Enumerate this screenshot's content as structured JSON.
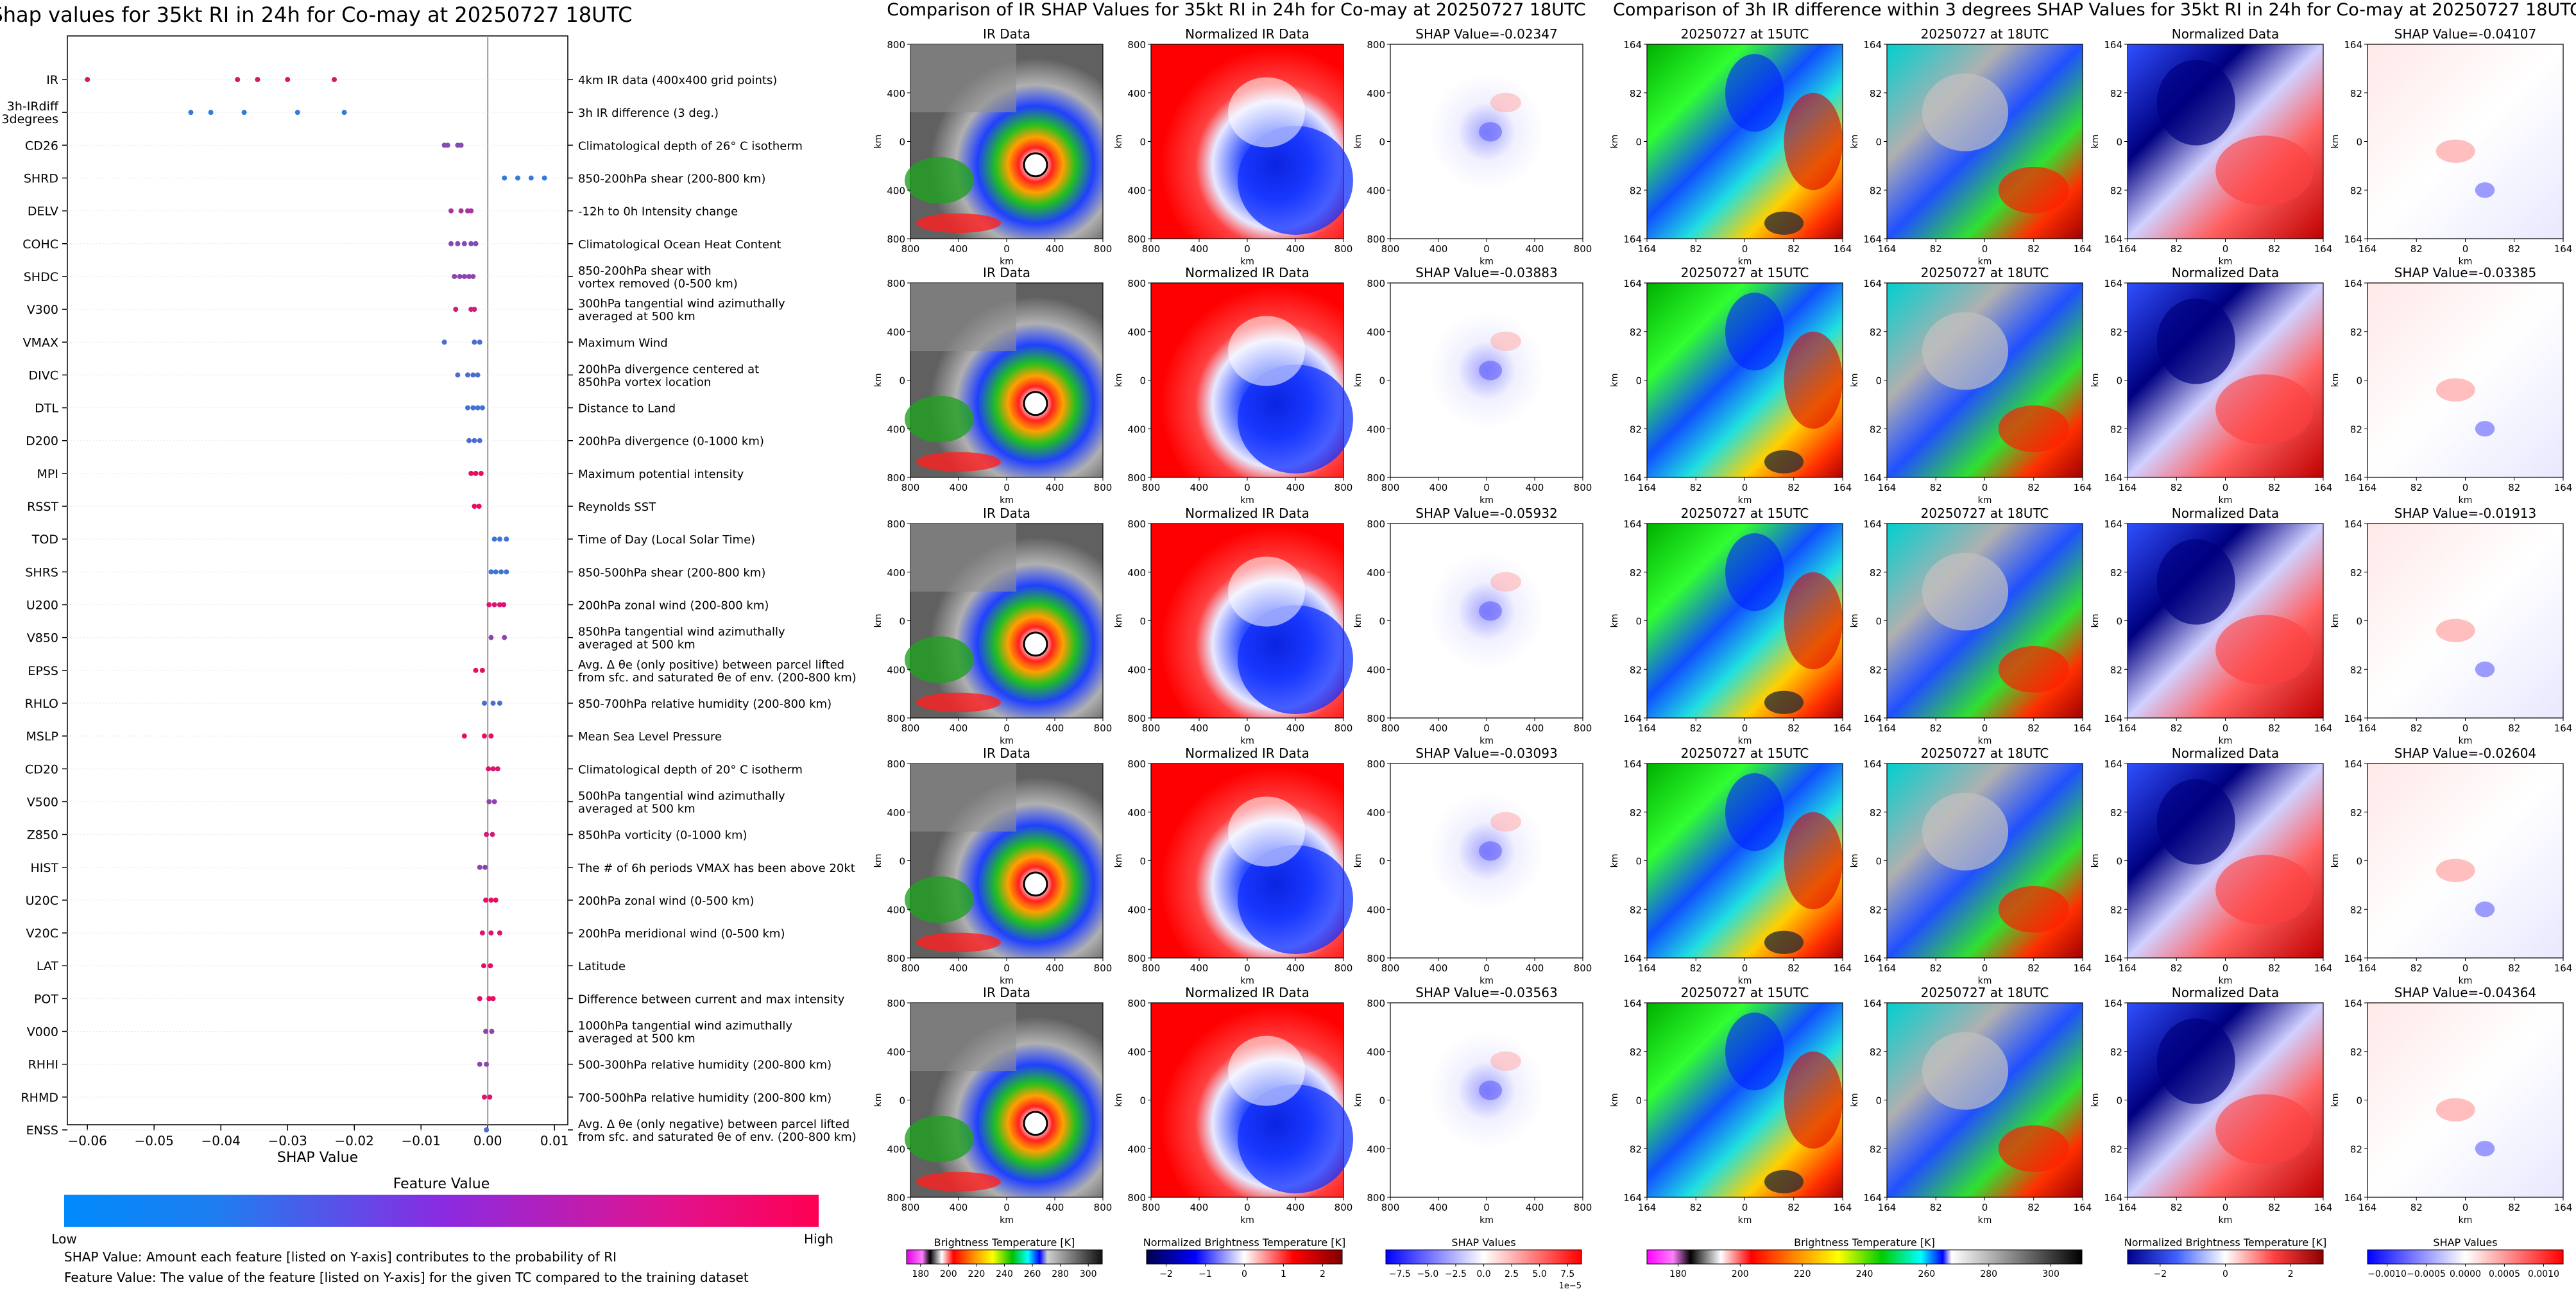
{
  "colors": {
    "feature_low": "#1e88e5",
    "feature_mid": "#8e44ad",
    "feature_high": "#ff0052",
    "shap_neg": "#0000ff",
    "shap_pos": "#c00000"
  },
  "left_panel": {
    "title": "Shap values for 35kt RI in 24h for Co-may at 20250727 18UTC",
    "xlabel": "SHAP Value",
    "legend_title": "Feature Value",
    "legend_low": "Low",
    "legend_high": "High",
    "note1": "SHAP Value: Amount each feature [listed on Y-axis] contributes to the probability of RI",
    "note2": "Feature Value: The value of the feature [listed on Y-axis] for the given TC compared to the training dataset"
  },
  "chart_data": [
    {
      "type": "scatter",
      "title": "Shap values for 35kt RI in 24h for Co-may at 20250727 18UTC",
      "xlabel": "SHAP Value",
      "xlim": [
        -0.063,
        0.012
      ],
      "xticks": [
        "-0.06",
        "-0.05",
        "-0.04",
        "-0.03",
        "-0.02",
        "-0.01",
        "0.00",
        "0.01"
      ],
      "xtick_values": [
        -0.06,
        -0.05,
        -0.04,
        -0.03,
        -0.02,
        -0.01,
        0.0,
        0.01
      ],
      "features": [
        {
          "name": "IR",
          "desc": "4km IR data (400x400 grid points)",
          "values": [
            -0.06,
            -0.0375,
            -0.0345,
            -0.03,
            -0.023
          ],
          "level": 0.85
        },
        {
          "name": "3h-IRdiff\n3degrees",
          "desc": "3h IR difference (3 deg.)",
          "values": [
            -0.0445,
            -0.0415,
            -0.0365,
            -0.0285,
            -0.0215
          ],
          "level": 0.1
        },
        {
          "name": "CD26",
          "desc": "Climatological depth of 26° C isotherm",
          "values": [
            -0.0065,
            -0.006,
            -0.0045,
            -0.004
          ],
          "level": 0.45
        },
        {
          "name": "SHRD",
          "desc": "850-200hPa shear (200-800 km)",
          "values": [
            0.0025,
            0.0045,
            0.0065,
            0.0085
          ],
          "level": 0.1
        },
        {
          "name": "DELV",
          "desc": "-12h to 0h Intensity change",
          "values": [
            -0.0055,
            -0.004,
            -0.003,
            -0.0025
          ],
          "level": 0.6
        },
        {
          "name": "COHC",
          "desc": "Climatological Ocean Heat Content",
          "values": [
            -0.0055,
            -0.0045,
            -0.0035,
            -0.0025,
            -0.0018
          ],
          "level": 0.45
        },
        {
          "name": "SHDC",
          "desc": "850-200hPa shear with\nvortex removed (0-500 km)",
          "values": [
            -0.005,
            -0.0042,
            -0.0035,
            -0.0028,
            -0.0022
          ],
          "level": 0.5
        },
        {
          "name": "V300",
          "desc": "300hPa tangential wind azimuthally\naveraged at 500 km",
          "values": [
            -0.0048,
            -0.0025,
            -0.002
          ],
          "level": 0.8
        },
        {
          "name": "VMAX",
          "desc": "Maximum Wind",
          "values": [
            -0.0065,
            -0.002,
            -0.0012
          ],
          "level": 0.2
        },
        {
          "name": "DIVC",
          "desc": "200hPa divergence centered at\n850hPa vortex location",
          "values": [
            -0.0045,
            -0.003,
            -0.0022,
            -0.0015
          ],
          "level": 0.2
        },
        {
          "name": "DTL",
          "desc": "Distance to Land",
          "values": [
            -0.003,
            -0.0022,
            -0.0015,
            -0.0008
          ],
          "level": 0.15
        },
        {
          "name": "D200",
          "desc": "200hPa divergence (0-1000 km)",
          "values": [
            -0.0028,
            -0.002,
            -0.0012
          ],
          "level": 0.2
        },
        {
          "name": "MPI",
          "desc": "Maximum potential intensity",
          "values": [
            -0.0025,
            -0.0018,
            -0.001
          ],
          "level": 0.9
        },
        {
          "name": "RSST",
          "desc": "Reynolds SST",
          "values": [
            -0.002,
            -0.0013
          ],
          "level": 0.9
        },
        {
          "name": "TOD",
          "desc": "Time of Day (Local Solar Time)",
          "values": [
            0.001,
            0.0018,
            0.0028
          ],
          "level": 0.15
        },
        {
          "name": "SHRS",
          "desc": "850-500hPa shear (200-800 km)",
          "values": [
            0.0005,
            0.0012,
            0.002,
            0.0028
          ],
          "level": 0.15
        },
        {
          "name": "U200",
          "desc": "200hPa zonal wind (200-800 km)",
          "values": [
            0.0002,
            0.001,
            0.0018,
            0.0024
          ],
          "level": 0.85
        },
        {
          "name": "V850",
          "desc": "850hPa tangential wind azimuthally\naveraged at 500 km",
          "values": [
            0.0005,
            0.0025
          ],
          "level": 0.5
        },
        {
          "name": "EPSS",
          "desc": "Avg. Δ θe (only positive) between parcel lifted\nfrom sfc. and saturated θe of env. (200-800 km)",
          "values": [
            -0.0018,
            -0.0008
          ],
          "level": 0.9
        },
        {
          "name": "RHLO",
          "desc": "850-700hPa relative humidity (200-800 km)",
          "values": [
            -0.0005,
            0.0008,
            0.0018
          ],
          "level": 0.2
        },
        {
          "name": "MSLP",
          "desc": "Mean Sea Level Pressure",
          "values": [
            -0.0035,
            -0.0005,
            0.0005
          ],
          "level": 0.9
        },
        {
          "name": "CD20",
          "desc": "Climatological depth of 20° C isotherm",
          "values": [
            0.0001,
            0.0008,
            0.0015
          ],
          "level": 0.85
        },
        {
          "name": "V500",
          "desc": "500hPa tangential wind azimuthally\naveraged at 500 km",
          "values": [
            0.0002,
            0.001
          ],
          "level": 0.5
        },
        {
          "name": "Z850",
          "desc": "850hPa vorticity (0-1000 km)",
          "values": [
            -0.0002,
            0.0007
          ],
          "level": 0.8
        },
        {
          "name": "HIST",
          "desc": "The # of 6h periods VMAX has been above 20kt",
          "values": [
            -0.0012,
            -0.0004
          ],
          "level": 0.5
        },
        {
          "name": "U20C",
          "desc": "200hPa zonal wind (0-500 km)",
          "values": [
            -0.0003,
            0.0005,
            0.0012
          ],
          "level": 0.9
        },
        {
          "name": "V20C",
          "desc": "200hPa meridional wind (0-500 km)",
          "values": [
            -0.0008,
            0.0005,
            0.0018
          ],
          "level": 0.85
        },
        {
          "name": "LAT",
          "desc": "Latitude",
          "values": [
            -0.0006,
            0.0004
          ],
          "level": 0.9
        },
        {
          "name": "POT",
          "desc": "Difference between current and max intensity",
          "values": [
            -0.0012,
            0.0002,
            0.0008
          ],
          "level": 0.9
        },
        {
          "name": "V000",
          "desc": "1000hPa tangential wind azimuthally\naveraged at 500 km",
          "values": [
            -0.0003,
            0.0006
          ],
          "level": 0.5
        },
        {
          "name": "RHHI",
          "desc": "500-300hPa relative humidity (200-800 km)",
          "values": [
            -0.0012,
            -0.0002
          ],
          "level": 0.5
        },
        {
          "name": "RHMD",
          "desc": "700-500hPa relative humidity (200-800 km)",
          "values": [
            -0.0005,
            0.0003
          ],
          "level": 0.85
        },
        {
          "name": "ENSS",
          "desc": "Avg. Δ θe (only negative) between parcel lifted\nfrom sfc. and saturated θe of env. (200-800 km)",
          "values": [
            -0.0002
          ],
          "level": 0.2
        }
      ]
    }
  ],
  "middle": {
    "title": "Comparison of IR SHAP Values for 35kt RI in 24h for Co-may at 20250727 18UTC",
    "col_titles": [
      "IR Data",
      "Normalized IR Data"
    ],
    "shap_titles": [
      "SHAP Value=-0.02347",
      "SHAP Value=-0.03883",
      "SHAP Value=-0.05932",
      "SHAP Value=-0.03093",
      "SHAP Value=-0.03563"
    ],
    "yticks": [
      "800",
      "400",
      "0",
      "400",
      "800"
    ],
    "xticks": [
      "800",
      "400",
      "0",
      "400",
      "800"
    ],
    "axis_unit": "km",
    "cb1_label": "Brightness Temperature [K]",
    "cb1_ticks": [
      "180",
      "200",
      "220",
      "240",
      "260",
      "280",
      "300"
    ],
    "cb2_label": "Normalized Brightness Temperature [K]",
    "cb2_ticks": [
      "−2",
      "−1",
      "0",
      "1",
      "2"
    ],
    "cb3_label": "SHAP Values",
    "cb3_ticks": [
      "−7.5",
      "−5.0",
      "−2.5",
      "0.0",
      "2.5",
      "5.0",
      "7.5"
    ],
    "cb3_exp": "1e−5"
  },
  "right": {
    "title": "Comparison of 3h IR difference within 3 degrees SHAP Values for 35kt RI in 24h for Co-may at 20250727 18UTC",
    "col_titles": [
      "20250727 at 15UTC",
      "20250727 at 18UTC",
      "Normalized Data"
    ],
    "shap_titles": [
      "SHAP Value=-0.04107",
      "SHAP Value=-0.03385",
      "SHAP Value=-0.01913",
      "SHAP Value=-0.02604",
      "SHAP Value=-0.04364"
    ],
    "yticks": [
      "164",
      "82",
      "0",
      "82",
      "164"
    ],
    "xticks": [
      "164",
      "82",
      "0",
      "82",
      "164"
    ],
    "axis_unit": "km",
    "cb1_label": "Brightness Temperature [K]",
    "cb1_ticks": [
      "180",
      "200",
      "220",
      "240",
      "260",
      "280",
      "300"
    ],
    "cb2_label": "Normalized Brightness Temperature [K]",
    "cb2_ticks": [
      "−2",
      "0",
      "2"
    ],
    "cb3_label": "SHAP Values",
    "cb3_ticks": [
      "−0.0010",
      "−0.0005",
      "0.0000",
      "0.0005",
      "0.0010"
    ]
  }
}
